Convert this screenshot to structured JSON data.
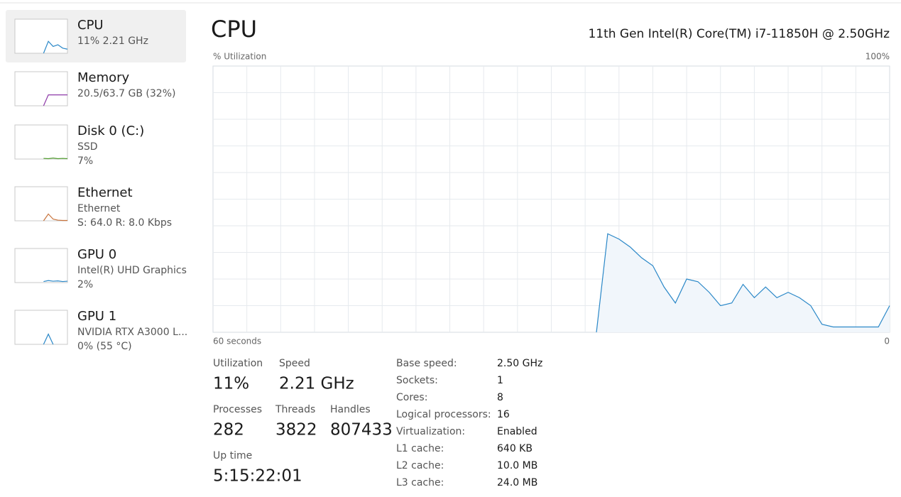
{
  "header": {
    "title": "CPU",
    "model": "11th Gen Intel(R) Core(TM) i7-11850H @ 2.50GHz"
  },
  "sidebar": [
    {
      "name": "CPU",
      "lines": [
        "11%  2.21 GHz"
      ],
      "color": "#2b88c8",
      "sparkline": [
        null,
        null,
        null,
        null,
        null,
        null,
        0,
        35,
        20,
        25,
        15,
        12
      ]
    },
    {
      "name": "Memory",
      "lines": [
        "20.5/63.7 GB (32%)"
      ],
      "color": "#8e3aa8",
      "sparkline": [
        null,
        null,
        null,
        null,
        null,
        null,
        0,
        32,
        32,
        32,
        32,
        32
      ]
    },
    {
      "name": "Disk 0 (C:)",
      "lines": [
        "SSD",
        "7%"
      ],
      "color": "#4f9d2d",
      "sparkline": [
        null,
        null,
        null,
        null,
        null,
        null,
        2,
        1,
        3,
        1,
        2,
        1
      ]
    },
    {
      "name": "Ethernet",
      "lines": [
        "Ethernet",
        "S: 64.0  R: 8.0 Kbps"
      ],
      "color": "#c8733c",
      "sparkline": [
        null,
        null,
        null,
        null,
        null,
        null,
        0,
        20,
        5,
        2,
        1,
        1
      ]
    },
    {
      "name": "GPU 0",
      "lines": [
        "Intel(R) UHD Graphics",
        "2%"
      ],
      "color": "#2b88c8",
      "sparkline": [
        null,
        null,
        null,
        null,
        null,
        null,
        3,
        6,
        4,
        5,
        3,
        4
      ]
    },
    {
      "name": "GPU 1",
      "lines": [
        "NVIDIA RTX A3000 L...",
        "0%  (55 °C)"
      ],
      "color": "#2b88c8",
      "sparkline": [
        null,
        null,
        null,
        null,
        null,
        null,
        0,
        30,
        0,
        null,
        null,
        null
      ]
    }
  ],
  "chart_data": {
    "type": "line",
    "ylabel": "% Utilization",
    "color": "#2b88c8",
    "grid": true,
    "x": [
      26,
      25,
      24,
      23,
      22,
      21,
      20,
      19,
      18,
      17,
      16,
      15,
      14,
      13,
      12,
      11,
      10,
      9,
      8,
      7,
      6,
      5,
      4,
      3,
      2,
      1,
      0
    ],
    "values": [
      0,
      37,
      35,
      32,
      28,
      25,
      17,
      11,
      20,
      19,
      15,
      10,
      11,
      18,
      13,
      17,
      13,
      15,
      13,
      10,
      3,
      2,
      2,
      2,
      2,
      2,
      10
    ],
    "xlim": [
      60,
      0
    ],
    "xticks": [
      {
        "value": 60,
        "label": "60 seconds"
      },
      0
    ],
    "ylim": [
      0,
      100
    ],
    "yticks": [
      {
        "value": 100,
        "label": "100%"
      }
    ]
  },
  "stats": [
    [
      {
        "label": "Utilization",
        "value": "11%"
      },
      {
        "label": "Speed",
        "value": "2.21 GHz"
      }
    ],
    [
      {
        "label": "Processes",
        "value": "282"
      },
      {
        "label": "Threads",
        "value": "3822"
      },
      {
        "label": "Handles",
        "value": "807433"
      }
    ],
    [
      {
        "label": "Up time",
        "value": "5:15:22:01"
      }
    ]
  ],
  "details": [
    [
      "Base speed:",
      "2.50 GHz"
    ],
    [
      "Sockets:",
      "1"
    ],
    [
      "Cores:",
      "8"
    ],
    [
      "Logical processors:",
      "16"
    ],
    [
      "Virtualization:",
      "Enabled"
    ],
    [
      "L1 cache:",
      "640 KB"
    ],
    [
      "L2 cache:",
      "10.0 MB"
    ],
    [
      "L3 cache:",
      "24.0 MB"
    ]
  ]
}
